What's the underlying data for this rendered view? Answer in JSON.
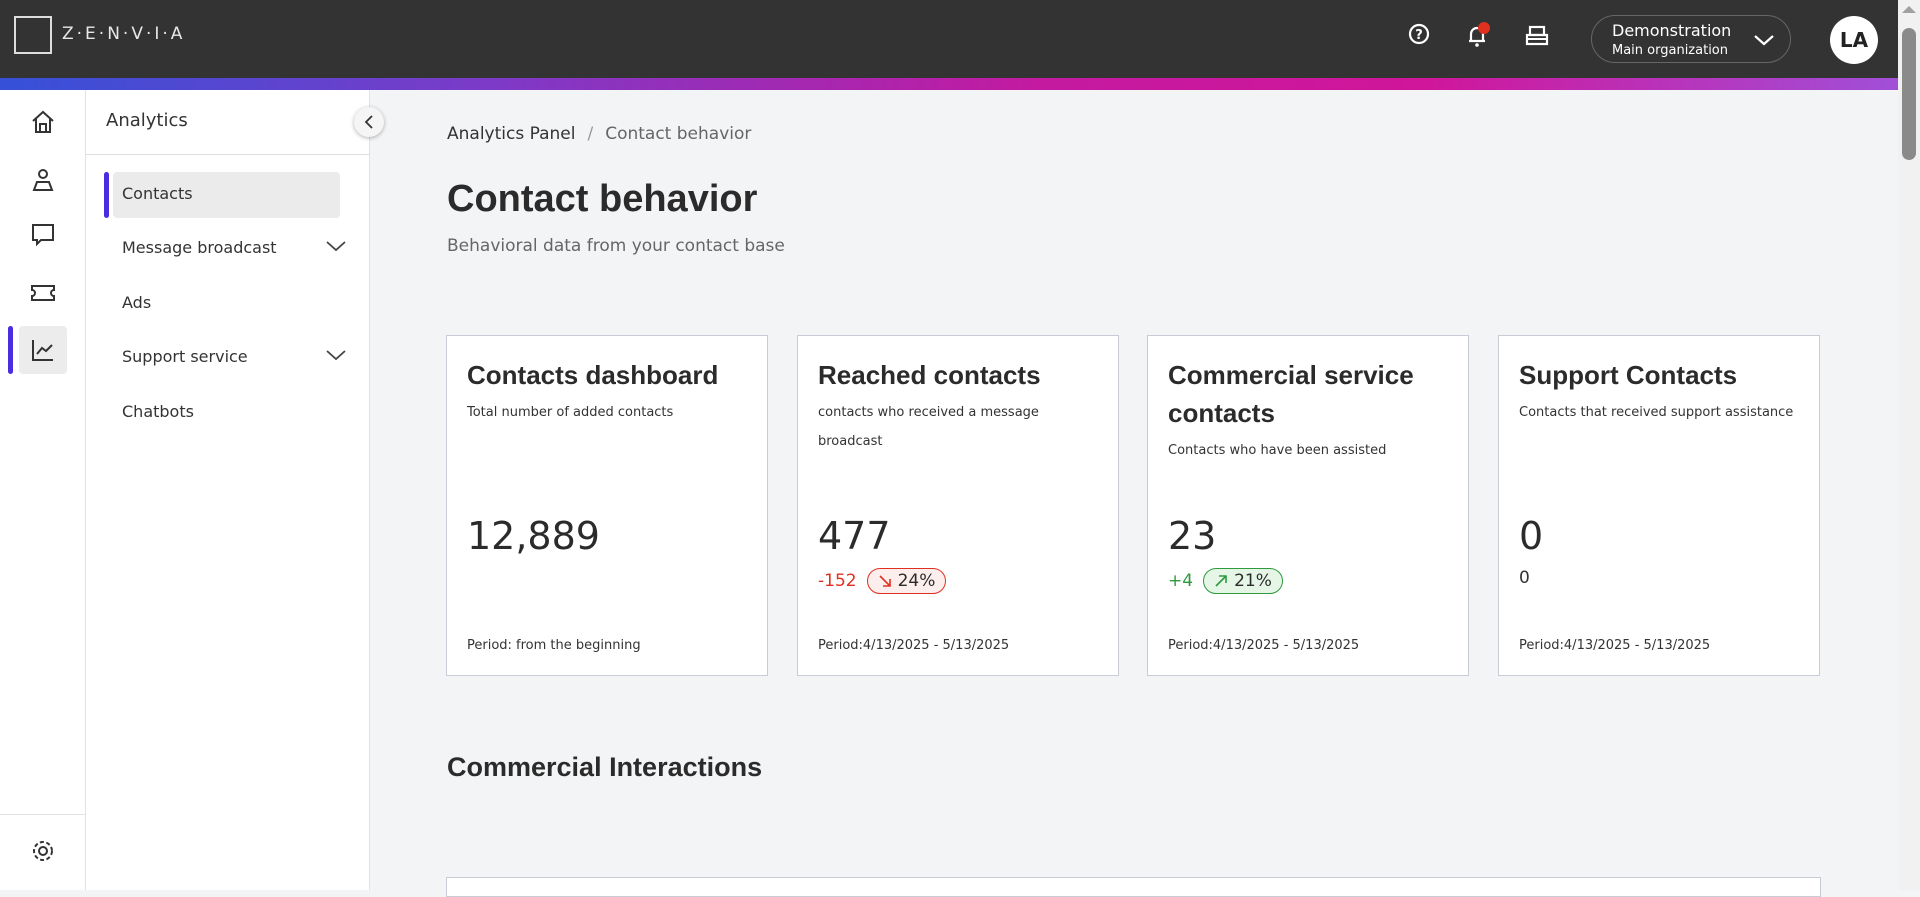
{
  "header": {
    "brand": "Z·E·N·V·I·A",
    "org_name": "Demonstration",
    "org_sub": "Main organization",
    "avatar": "LA",
    "icons": [
      "help-icon",
      "bell-icon",
      "inbox-tray-icon"
    ]
  },
  "rail": {
    "icons": [
      "home-icon",
      "user-icon",
      "chat-icon",
      "ticket-icon",
      "chart-icon",
      "gear-icon"
    ],
    "active": "chart-icon"
  },
  "submenu": {
    "title": "Analytics",
    "items": [
      {
        "label": "Contacts",
        "active": true
      },
      {
        "label": "Message broadcast",
        "expandable": true
      },
      {
        "label": "Ads"
      },
      {
        "label": "Support service",
        "expandable": true
      },
      {
        "label": "Chatbots"
      }
    ]
  },
  "breadcrumb": {
    "root": "Analytics Panel",
    "sep": "/",
    "current": "Contact behavior"
  },
  "page": {
    "title": "Contact behavior",
    "subtitle": "Behavioral data from your contact base",
    "section": "Commercial Interactions"
  },
  "cards": [
    {
      "title": "Contacts dashboard",
      "desc": "Total number of added contacts",
      "value": "12,889",
      "period": "Period: from the beginning"
    },
    {
      "title": "Reached contacts",
      "desc": "contacts who received a message broadcast",
      "value": "477",
      "delta": "-152",
      "pct": "24%",
      "trend": "down",
      "period": "Period:4/13/2025 - 5/13/2025"
    },
    {
      "title": "Commercial service contacts",
      "desc": "Contacts who have been assisted",
      "value": "23",
      "delta": "+4",
      "pct": "21%",
      "trend": "up",
      "period": "Period:4/13/2025 - 5/13/2025"
    },
    {
      "title": "Support Contacts",
      "desc": "Contacts that received support assistance",
      "value": "0",
      "delta": "0",
      "period": "Period:4/13/2025 - 5/13/2025"
    }
  ],
  "colors": {
    "accent": "#4a2de0",
    "down": "#e03020",
    "up": "#2e9a3e"
  }
}
